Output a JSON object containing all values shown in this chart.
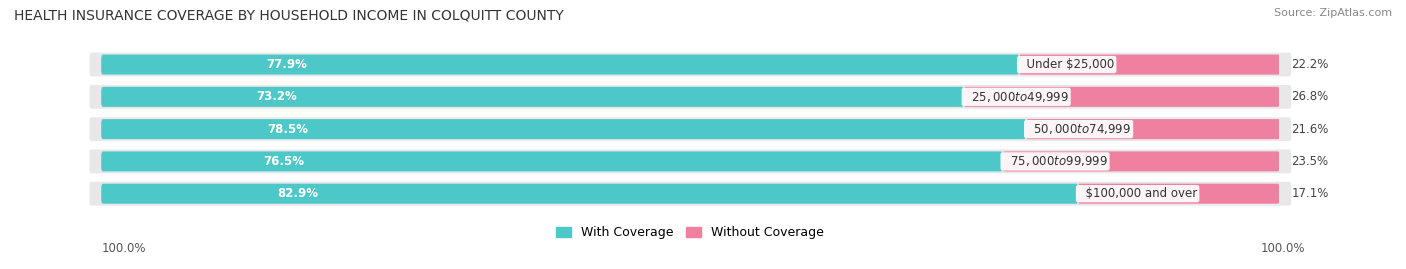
{
  "title": "HEALTH INSURANCE COVERAGE BY HOUSEHOLD INCOME IN COLQUITT COUNTY",
  "source": "Source: ZipAtlas.com",
  "categories": [
    "Under $25,000",
    "$25,000 to $49,999",
    "$50,000 to $74,999",
    "$75,000 to $99,999",
    "$100,000 and over"
  ],
  "with_coverage": [
    77.9,
    73.2,
    78.5,
    76.5,
    82.9
  ],
  "without_coverage": [
    22.2,
    26.8,
    21.6,
    23.5,
    17.1
  ],
  "color_coverage": "#4DC8C8",
  "color_no_coverage": "#F080A0",
  "row_bg_color": "#E8E8EB",
  "background_color": "#FFFFFF",
  "title_fontsize": 10,
  "label_fontsize": 8.5,
  "tick_fontsize": 8.5,
  "legend_fontsize": 9,
  "left_label": "100.0%",
  "right_label": "100.0%"
}
